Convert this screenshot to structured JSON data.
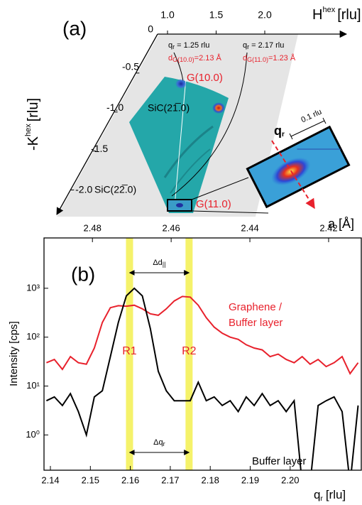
{
  "panel_a": {
    "label": "(a)",
    "h_axis": {
      "name": "H",
      "sup": "hex",
      "unit": "[rlu]",
      "ticks": [
        {
          "value": 1,
          "label": "1.0"
        },
        {
          "value": 1.5,
          "label": "1.5"
        },
        {
          "value": 2,
          "label": "2.0"
        }
      ]
    },
    "k_axis": {
      "name": "-K",
      "sup": "hex",
      "unit": "[rlu]",
      "ticks": [
        0,
        -0.5,
        {
          "value": -1,
          "label": "-1.0"
        },
        -1.5,
        {
          "value": -2,
          "label": "-2.0"
        }
      ]
    },
    "annotations": {
      "q1": {
        "main": "q",
        "sub": "r",
        "text": " = 1.25 rlu"
      },
      "d1": {
        "main": "d",
        "sub": "G(10.0)",
        "text": "=2.13 Å"
      },
      "q2": {
        "main": "q",
        "sub": "r",
        "text": " = 2.17 rlu"
      },
      "d2": {
        "main": "d",
        "sub": "G(11.0)",
        "text": "=1.23 Å"
      }
    },
    "peaks": [
      "G(10.0)",
      "SiC(21̅.0)",
      "SiC(22̅.0)",
      "G(11.0)"
    ],
    "inset": {
      "main": "q",
      "sub": "r",
      "scale": "0.1 rlu"
    }
  },
  "chart_data": {
    "type": "line",
    "panel_label": "(b)",
    "ylabel": "Intensity [cps]",
    "xlabel": {
      "main": "q",
      "sub": "r",
      "unit": "[rlu]"
    },
    "x2label": "a [Å]",
    "log_y": true,
    "grid": false,
    "xlim": [
      2.1384,
      2.2178
    ],
    "xticks": [
      2.14,
      2.15,
      2.16,
      2.17,
      2.18,
      2.19,
      {
        "value": 2.2,
        "label": "2.20"
      }
    ],
    "x2lim": [
      2.4923,
      2.4117
    ],
    "x2ticks": [
      2.48,
      2.46,
      2.44,
      2.42
    ],
    "ylim": [
      0.19,
      10700
    ],
    "yticks": [
      {
        "value": 1,
        "label": "10⁰"
      },
      {
        "value": 10,
        "label": "10¹"
      },
      {
        "value": 100,
        "label": "10²"
      },
      {
        "value": 1000,
        "label": "10³"
      }
    ],
    "bands": [
      {
        "label": "R1",
        "value": 2.1598
      },
      {
        "label": "R2",
        "value": 2.1747
      }
    ],
    "band_color": "#f5f26a",
    "delta_d": {
      "main": "Δd",
      "sub": "||"
    },
    "delta_q": {
      "main": "Δq",
      "sub": "r"
    },
    "x": [
      2.139,
      2.141,
      2.143,
      2.145,
      2.147,
      2.149,
      2.151,
      2.153,
      2.155,
      2.157,
      2.159,
      2.161,
      2.163,
      2.165,
      2.167,
      2.169,
      2.171,
      2.173,
      2.175,
      2.177,
      2.179,
      2.181,
      2.183,
      2.185,
      2.187,
      2.189,
      2.191,
      2.193,
      2.195,
      2.197,
      2.199,
      2.201,
      2.203,
      2.205,
      2.207,
      2.209,
      2.211,
      2.213,
      2.215,
      2.217
    ],
    "series": [
      {
        "name": [
          "Graphene /",
          "Buffer layer"
        ],
        "color": "#e8212c",
        "values": [
          30,
          35,
          22,
          40,
          30,
          28,
          60,
          200,
          400,
          440,
          430,
          450,
          380,
          300,
          280,
          380,
          550,
          680,
          660,
          450,
          250,
          160,
          120,
          100,
          90,
          70,
          60,
          55,
          40,
          45,
          35,
          30,
          40,
          28,
          35,
          25,
          30,
          40,
          18,
          30
        ]
      },
      {
        "name": "Buffer layer",
        "color": "#000000",
        "values": [
          5,
          6,
          4,
          7,
          3,
          1,
          6,
          8,
          40,
          200,
          700,
          1000,
          700,
          150,
          20,
          8,
          5,
          5,
          5,
          12,
          5,
          6,
          4,
          5,
          3,
          6,
          4,
          7,
          4,
          5,
          3,
          5,
          0.1,
          0.1,
          4,
          5,
          6,
          3,
          0.1,
          4
        ]
      }
    ]
  }
}
